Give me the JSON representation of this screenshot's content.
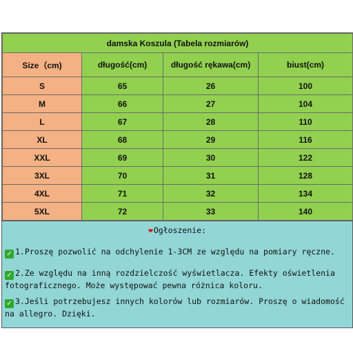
{
  "title": "damska Koszula (Tabela rozmiarów)",
  "headers": [
    "Size（cm)",
    "długość(cm)",
    "długość rękawa(cm)",
    "biust(cm)"
  ],
  "rows": [
    [
      "S",
      "65",
      "26",
      "100"
    ],
    [
      "M",
      "66",
      "27",
      "104"
    ],
    [
      "L",
      "67",
      "28",
      "110"
    ],
    [
      "XL",
      "68",
      "29",
      "116"
    ],
    [
      "XXL",
      "69",
      "30",
      "122"
    ],
    [
      "3XL",
      "70",
      "31",
      "128"
    ],
    [
      "4XL",
      "71",
      "32",
      "134"
    ],
    [
      "5XL",
      "72",
      "33",
      "140"
    ]
  ],
  "notice": {
    "heart": "❤",
    "title": "Ogłoszenie:",
    "check_glyph": "✓",
    "items": [
      "1.Proszę pozwolić na odchylenie 1-3CM ze względu na pomiary ręczne.",
      "2.Ze względu na inną rozdzielczość wyświetlacza. Efekty oświetlenia fotograficznego. Może występować pewna różnica koloru.",
      "3.Jeśli potrzebujesz innych kolorów lub rozmiarów. Proszę o wiadomość na allegro. Dzięki."
    ]
  },
  "colors": {
    "title_bg": "#92d050",
    "size_column_bg": "#f4b183",
    "value_bg": "#92d050",
    "notice_bg": "#92d6d6",
    "check_bg": "#2ea82e"
  }
}
